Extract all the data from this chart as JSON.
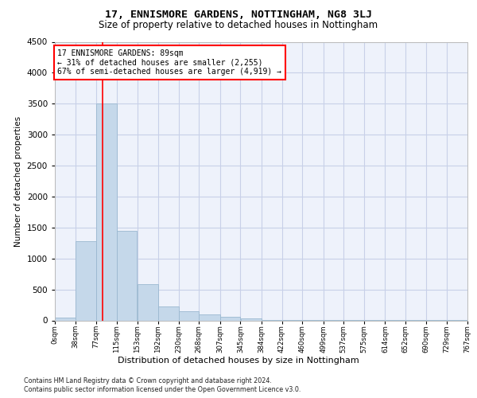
{
  "title": "17, ENNISMORE GARDENS, NOTTINGHAM, NG8 3LJ",
  "subtitle": "Size of property relative to detached houses in Nottingham",
  "xlabel": "Distribution of detached houses by size in Nottingham",
  "ylabel": "Number of detached properties",
  "bar_color": "#c5d8ea",
  "bar_edge_color": "#9ab8d0",
  "background_color": "#eef2fb",
  "grid_color": "#c8d0e8",
  "red_line_x": 89,
  "annotation_text": "17 ENNISMORE GARDENS: 89sqm\n← 31% of detached houses are smaller (2,255)\n67% of semi-detached houses are larger (4,919) →",
  "bin_edges": [
    0,
    38,
    77,
    115,
    153,
    192,
    230,
    268,
    307,
    345,
    384,
    422,
    460,
    499,
    537,
    575,
    614,
    652,
    690,
    729,
    767
  ],
  "bin_counts": [
    50,
    1280,
    3500,
    1450,
    580,
    230,
    150,
    100,
    60,
    35,
    5,
    5,
    5,
    5,
    5,
    5,
    5,
    5,
    5,
    5
  ],
  "ylim": [
    0,
    4500
  ],
  "yticks": [
    0,
    500,
    1000,
    1500,
    2000,
    2500,
    3000,
    3500,
    4000,
    4500
  ],
  "footnote1": "Contains HM Land Registry data © Crown copyright and database right 2024.",
  "footnote2": "Contains public sector information licensed under the Open Government Licence v3.0."
}
